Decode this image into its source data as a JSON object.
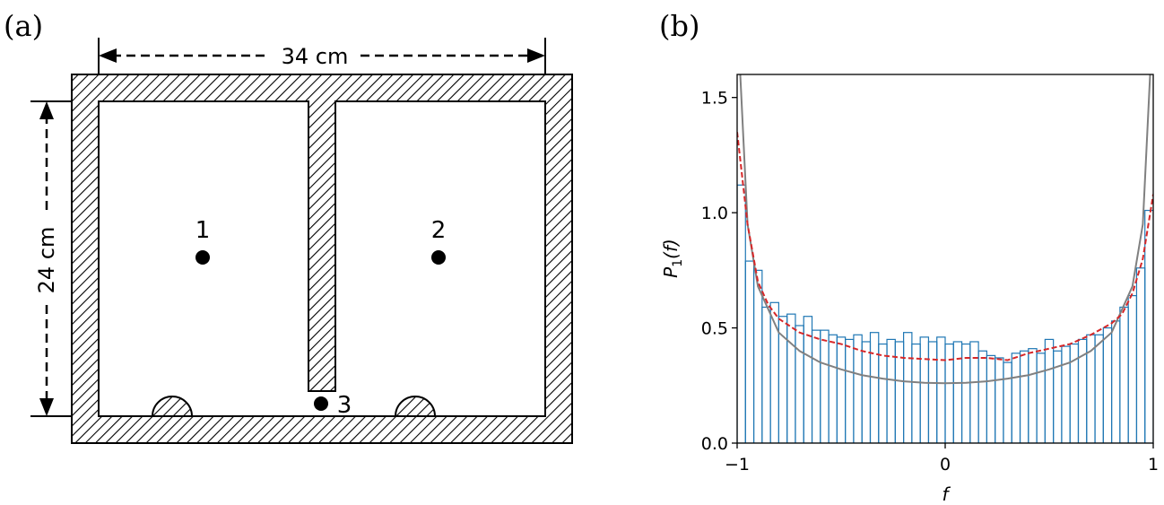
{
  "diagram": {
    "panel_label": "(a)",
    "width_label": "34 cm",
    "height_label": "24 cm",
    "points": [
      {
        "label": "1"
      },
      {
        "label": "2"
      },
      {
        "label": "3"
      }
    ]
  },
  "chart_data": {
    "type": "histogram",
    "panel_label": "(b)",
    "xlabel": "f",
    "ylabel": {
      "symbol": "P",
      "subscript": "1",
      "argument": "(f)"
    },
    "bins": [
      -1,
      -0.96,
      -0.92,
      -0.88,
      -0.84,
      -0.8,
      -0.76,
      -0.72,
      -0.68,
      -0.64,
      -0.6,
      -0.56,
      -0.52,
      -0.48,
      -0.44,
      -0.4,
      -0.36,
      -0.32,
      -0.28,
      -0.24,
      -0.2,
      -0.16,
      -0.12,
      -0.08,
      -0.04,
      0,
      0.04,
      0.08,
      0.12,
      0.16,
      0.2,
      0.24,
      0.28,
      0.32,
      0.36,
      0.4,
      0.44,
      0.48,
      0.52,
      0.56,
      0.6,
      0.64,
      0.68,
      0.72,
      0.76,
      0.8,
      0.84,
      0.88,
      0.92,
      0.96,
      1
    ],
    "values": [
      1.12,
      0.79,
      0.75,
      0.59,
      0.61,
      0.55,
      0.56,
      0.51,
      0.55,
      0.49,
      0.49,
      0.47,
      0.46,
      0.45,
      0.47,
      0.44,
      0.48,
      0.43,
      0.45,
      0.44,
      0.48,
      0.43,
      0.46,
      0.44,
      0.46,
      0.43,
      0.44,
      0.43,
      0.44,
      0.4,
      0.38,
      0.37,
      0.35,
      0.39,
      0.4,
      0.41,
      0.39,
      0.45,
      0.4,
      0.42,
      0.43,
      0.45,
      0.47,
      0.47,
      0.5,
      0.53,
      0.59,
      0.64,
      0.76,
      1.01
    ],
    "color": "#1f77b4",
    "lines": [
      {
        "color": "#808080",
        "dashed": false,
        "x": [
          -0.985,
          -0.95,
          -0.9,
          -0.8,
          -0.7,
          -0.6,
          -0.5,
          -0.4,
          -0.3,
          -0.2,
          -0.1,
          0,
          0.1,
          0.2,
          0.3,
          0.4,
          0.5,
          0.6,
          0.7,
          0.8,
          0.9,
          0.95,
          0.985
        ],
        "values": [
          1.6,
          0.95,
          0.68,
          0.48,
          0.4,
          0.35,
          0.32,
          0.295,
          0.28,
          0.268,
          0.262,
          0.26,
          0.262,
          0.268,
          0.28,
          0.295,
          0.32,
          0.35,
          0.4,
          0.48,
          0.68,
          0.95,
          1.6
        ]
      },
      {
        "color": "#d62728",
        "dashed": true,
        "x": [
          -1,
          -0.95,
          -0.9,
          -0.85,
          -0.8,
          -0.7,
          -0.6,
          -0.5,
          -0.4,
          -0.3,
          -0.2,
          -0.1,
          0,
          0.1,
          0.2,
          0.3,
          0.4,
          0.5,
          0.6,
          0.7,
          0.8,
          0.85,
          0.9,
          0.95,
          1
        ],
        "values": [
          1.35,
          0.95,
          0.7,
          0.6,
          0.54,
          0.48,
          0.45,
          0.43,
          0.4,
          0.38,
          0.37,
          0.365,
          0.36,
          0.37,
          0.37,
          0.36,
          0.39,
          0.41,
          0.43,
          0.47,
          0.52,
          0.56,
          0.65,
          0.8,
          1.08
        ]
      }
    ],
    "xlim": [
      -1,
      1
    ],
    "ylim": [
      0,
      1.6
    ],
    "xticks": [
      {
        "value": -1,
        "label": "−1"
      },
      0,
      1
    ],
    "yticks": [
      {
        "value": 0,
        "label": "0.0"
      },
      0.5,
      {
        "value": 1,
        "label": "1.0"
      },
      1.5
    ]
  }
}
